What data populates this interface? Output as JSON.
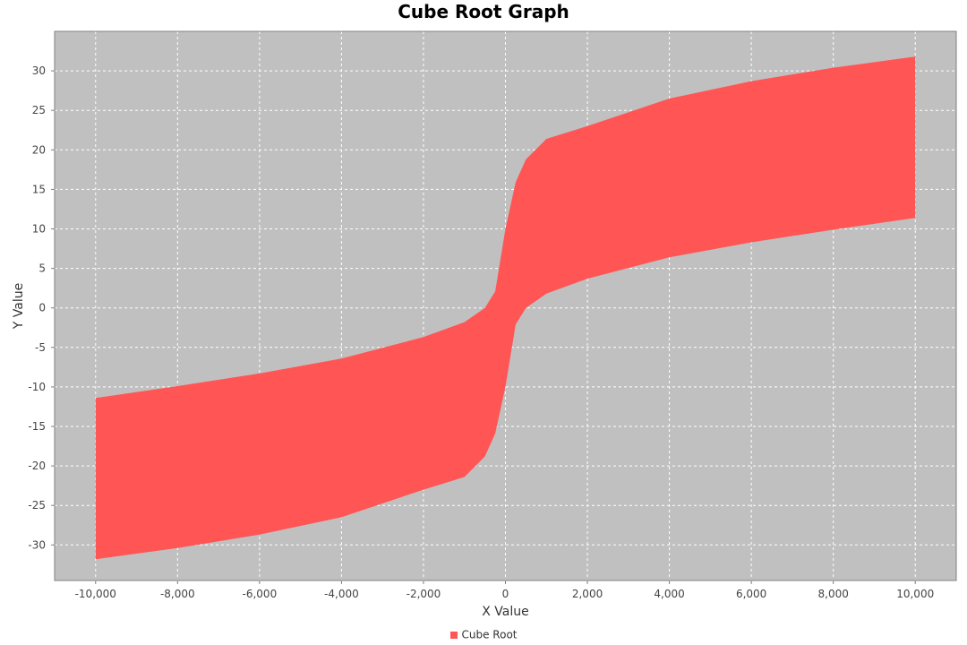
{
  "chart_data": {
    "type": "scatter",
    "title": "Cube Root Graph",
    "xlabel": "X Value",
    "ylabel": "Y Value",
    "xlim": [
      -11000,
      11000
    ],
    "ylim": [
      -34.5,
      35
    ],
    "x_ticks": [
      -10000,
      -8000,
      -6000,
      -4000,
      -2000,
      0,
      2000,
      4000,
      6000,
      8000,
      10000
    ],
    "x_tick_labels": [
      "-10,000",
      "-8,000",
      "-6,000",
      "-4,000",
      "-2,000",
      "0",
      "2,000",
      "4,000",
      "6,000",
      "8,000",
      "10,000"
    ],
    "y_ticks": [
      -30,
      -25,
      -20,
      -15,
      -10,
      -5,
      0,
      5,
      10,
      15,
      20,
      25,
      30
    ],
    "y_tick_labels": [
      "-30",
      "-25",
      "-20",
      "-15",
      "-10",
      "-5",
      "0",
      "5",
      "10",
      "15",
      "20",
      "25",
      "30"
    ],
    "grid": true,
    "legend_position": "bottom",
    "background_color": "#c0c0c0",
    "gridline_color": "#ffffff",
    "series": [
      {
        "name": "Cube Root",
        "color": "#ff5555",
        "x": [
          -10000,
          -8000,
          -6000,
          -4000,
          -2000,
          -1000,
          -500,
          -250,
          0,
          250,
          500,
          1000,
          2000,
          4000,
          6000,
          8000,
          10000
        ],
        "y_upper": [
          -11.4,
          -9.9,
          -8.3,
          -6.4,
          -3.7,
          -1.8,
          0.0,
          2.1,
          10.0,
          15.9,
          18.8,
          21.4,
          23.0,
          26.5,
          28.7,
          30.4,
          31.8
        ],
        "y_lower": [
          -31.8,
          -30.4,
          -28.7,
          -26.5,
          -23.0,
          -21.4,
          -18.8,
          -15.9,
          -10.0,
          -2.1,
          0.0,
          1.8,
          3.7,
          6.4,
          8.3,
          9.9,
          11.4
        ]
      }
    ]
  }
}
